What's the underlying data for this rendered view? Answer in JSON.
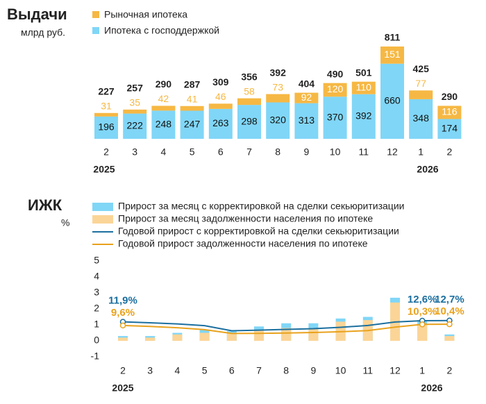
{
  "chart_data": [
    {
      "type": "stacked-bar",
      "title": "Выдачи",
      "subtitle": "млрд руб.",
      "categories": [
        "2",
        "3",
        "4",
        "5",
        "6",
        "7",
        "8",
        "9",
        "10",
        "11",
        "12",
        "1",
        "2"
      ],
      "annotations": [
        "2025",
        "2026"
      ],
      "series": [
        {
          "name": "Рыночная ипотека",
          "color": "#f6b844",
          "values": [
            31,
            35,
            42,
            41,
            46,
            58,
            73,
            92,
            120,
            110,
            151,
            77,
            116
          ]
        },
        {
          "name": "Ипотека с господдержкой",
          "color": "#80d6f7",
          "values": [
            196,
            222,
            248,
            247,
            263,
            298,
            320,
            313,
            370,
            392,
            660,
            348,
            174
          ]
        }
      ],
      "totals": [
        227,
        257,
        290,
        287,
        309,
        356,
        392,
        404,
        490,
        501,
        811,
        425,
        290
      ]
    },
    {
      "type": "bar-line",
      "title": "ИЖК",
      "subtitle": "%",
      "categories": [
        "2",
        "3",
        "4",
        "5",
        "6",
        "7",
        "8",
        "9",
        "10",
        "11",
        "12",
        "1",
        "2"
      ],
      "annotations": [
        "2025",
        "2026"
      ],
      "ylim": [
        -1,
        5
      ],
      "yticks": [
        -1,
        0,
        1,
        2,
        3,
        4,
        5
      ],
      "y2lim": [
        -10,
        50
      ],
      "grid": false,
      "series": [
        {
          "name": "Прирост за месяц с корректировкой на сделки секьюритизации",
          "kind": "bar",
          "color": "#80d6f7",
          "values": [
            0.3,
            0.3,
            0.5,
            0.7,
            0.6,
            0.9,
            1.1,
            1.1,
            1.4,
            1.5,
            2.7,
            1.3,
            0.4
          ]
        },
        {
          "name": "Прирост за месяц задолженности населения по ипотеке",
          "kind": "bar",
          "color": "#fbd597",
          "values": [
            0.2,
            0.2,
            0.4,
            0.5,
            0.5,
            0.7,
            0.8,
            0.8,
            1.2,
            1.3,
            2.4,
            1.0,
            0.3
          ]
        },
        {
          "name": "Годовой прирост с корректировкой на сделки секьюритизации",
          "kind": "line",
          "axis": "y2",
          "color": "#1b6f9f",
          "values": [
            11.9,
            11.3,
            10.6,
            9.5,
            6.3,
            6.7,
            7.2,
            7.6,
            8.5,
            9.6,
            11.8,
            12.6,
            12.7
          ],
          "value_labels": [
            "11,9%",
            null,
            null,
            null,
            null,
            null,
            null,
            null,
            null,
            null,
            null,
            "12,6%",
            "12,7%"
          ]
        },
        {
          "name": "Годовой прирост задолженности населения по ипотеке",
          "kind": "line",
          "axis": "y2",
          "color": "#e9a21c",
          "values": [
            9.6,
            9.0,
            8.2,
            7.0,
            4.6,
            4.7,
            4.9,
            5.2,
            5.7,
            6.4,
            8.6,
            10.3,
            10.4
          ],
          "value_labels": [
            "9,6%",
            null,
            null,
            null,
            null,
            null,
            null,
            null,
            null,
            null,
            null,
            "10,3%",
            "10,4%"
          ]
        }
      ]
    }
  ]
}
